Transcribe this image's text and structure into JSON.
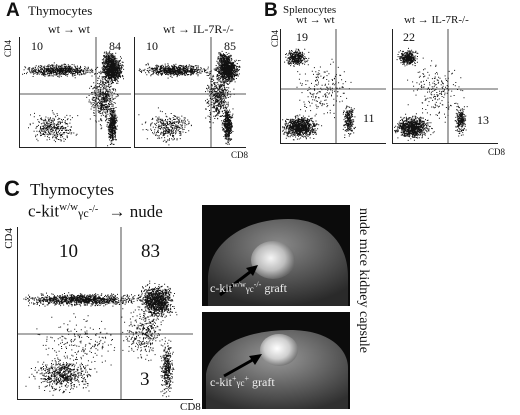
{
  "panelA": {
    "letter": "A",
    "title": "Thymocytes",
    "plots": [
      {
        "label": "wt → wt",
        "q": [
          "10",
          "84",
          "3"
        ]
      },
      {
        "label": "wt → IL-7R-/-",
        "q": [
          "10",
          "85",
          "3"
        ]
      }
    ],
    "ylabel": "CD4",
    "xlabel": "CD8"
  },
  "panelB": {
    "letter": "B",
    "title": "Splenocytes",
    "plots": [
      {
        "label": "wt → wt",
        "q": [
          "19",
          "11"
        ]
      },
      {
        "label": "wt → IL-7R-/-",
        "q": [
          "22",
          "13"
        ]
      }
    ],
    "ylabel": "CD4",
    "xlabel": "CD8"
  },
  "panelC": {
    "letter": "C",
    "title": "Thymocytes",
    "donor": "c-kit",
    "donor_sup": "w/w",
    "donor_gamma": "γc",
    "donor_ko": "-/-",
    "recipient": "→ nude",
    "q": [
      "10",
      "83",
      "3"
    ],
    "ylabel": "CD4",
    "xlabel": "CD8",
    "graft1": {
      "a": "c-kit",
      "sup": "w/w",
      "g": "γc",
      "ko": "-/-",
      "end": " graft"
    },
    "graft2": {
      "a": "c-kit",
      "sup": "+",
      "g": "γc",
      "ko": "+",
      "end": " graft"
    },
    "side": "nude mice kidney capsule"
  }
}
